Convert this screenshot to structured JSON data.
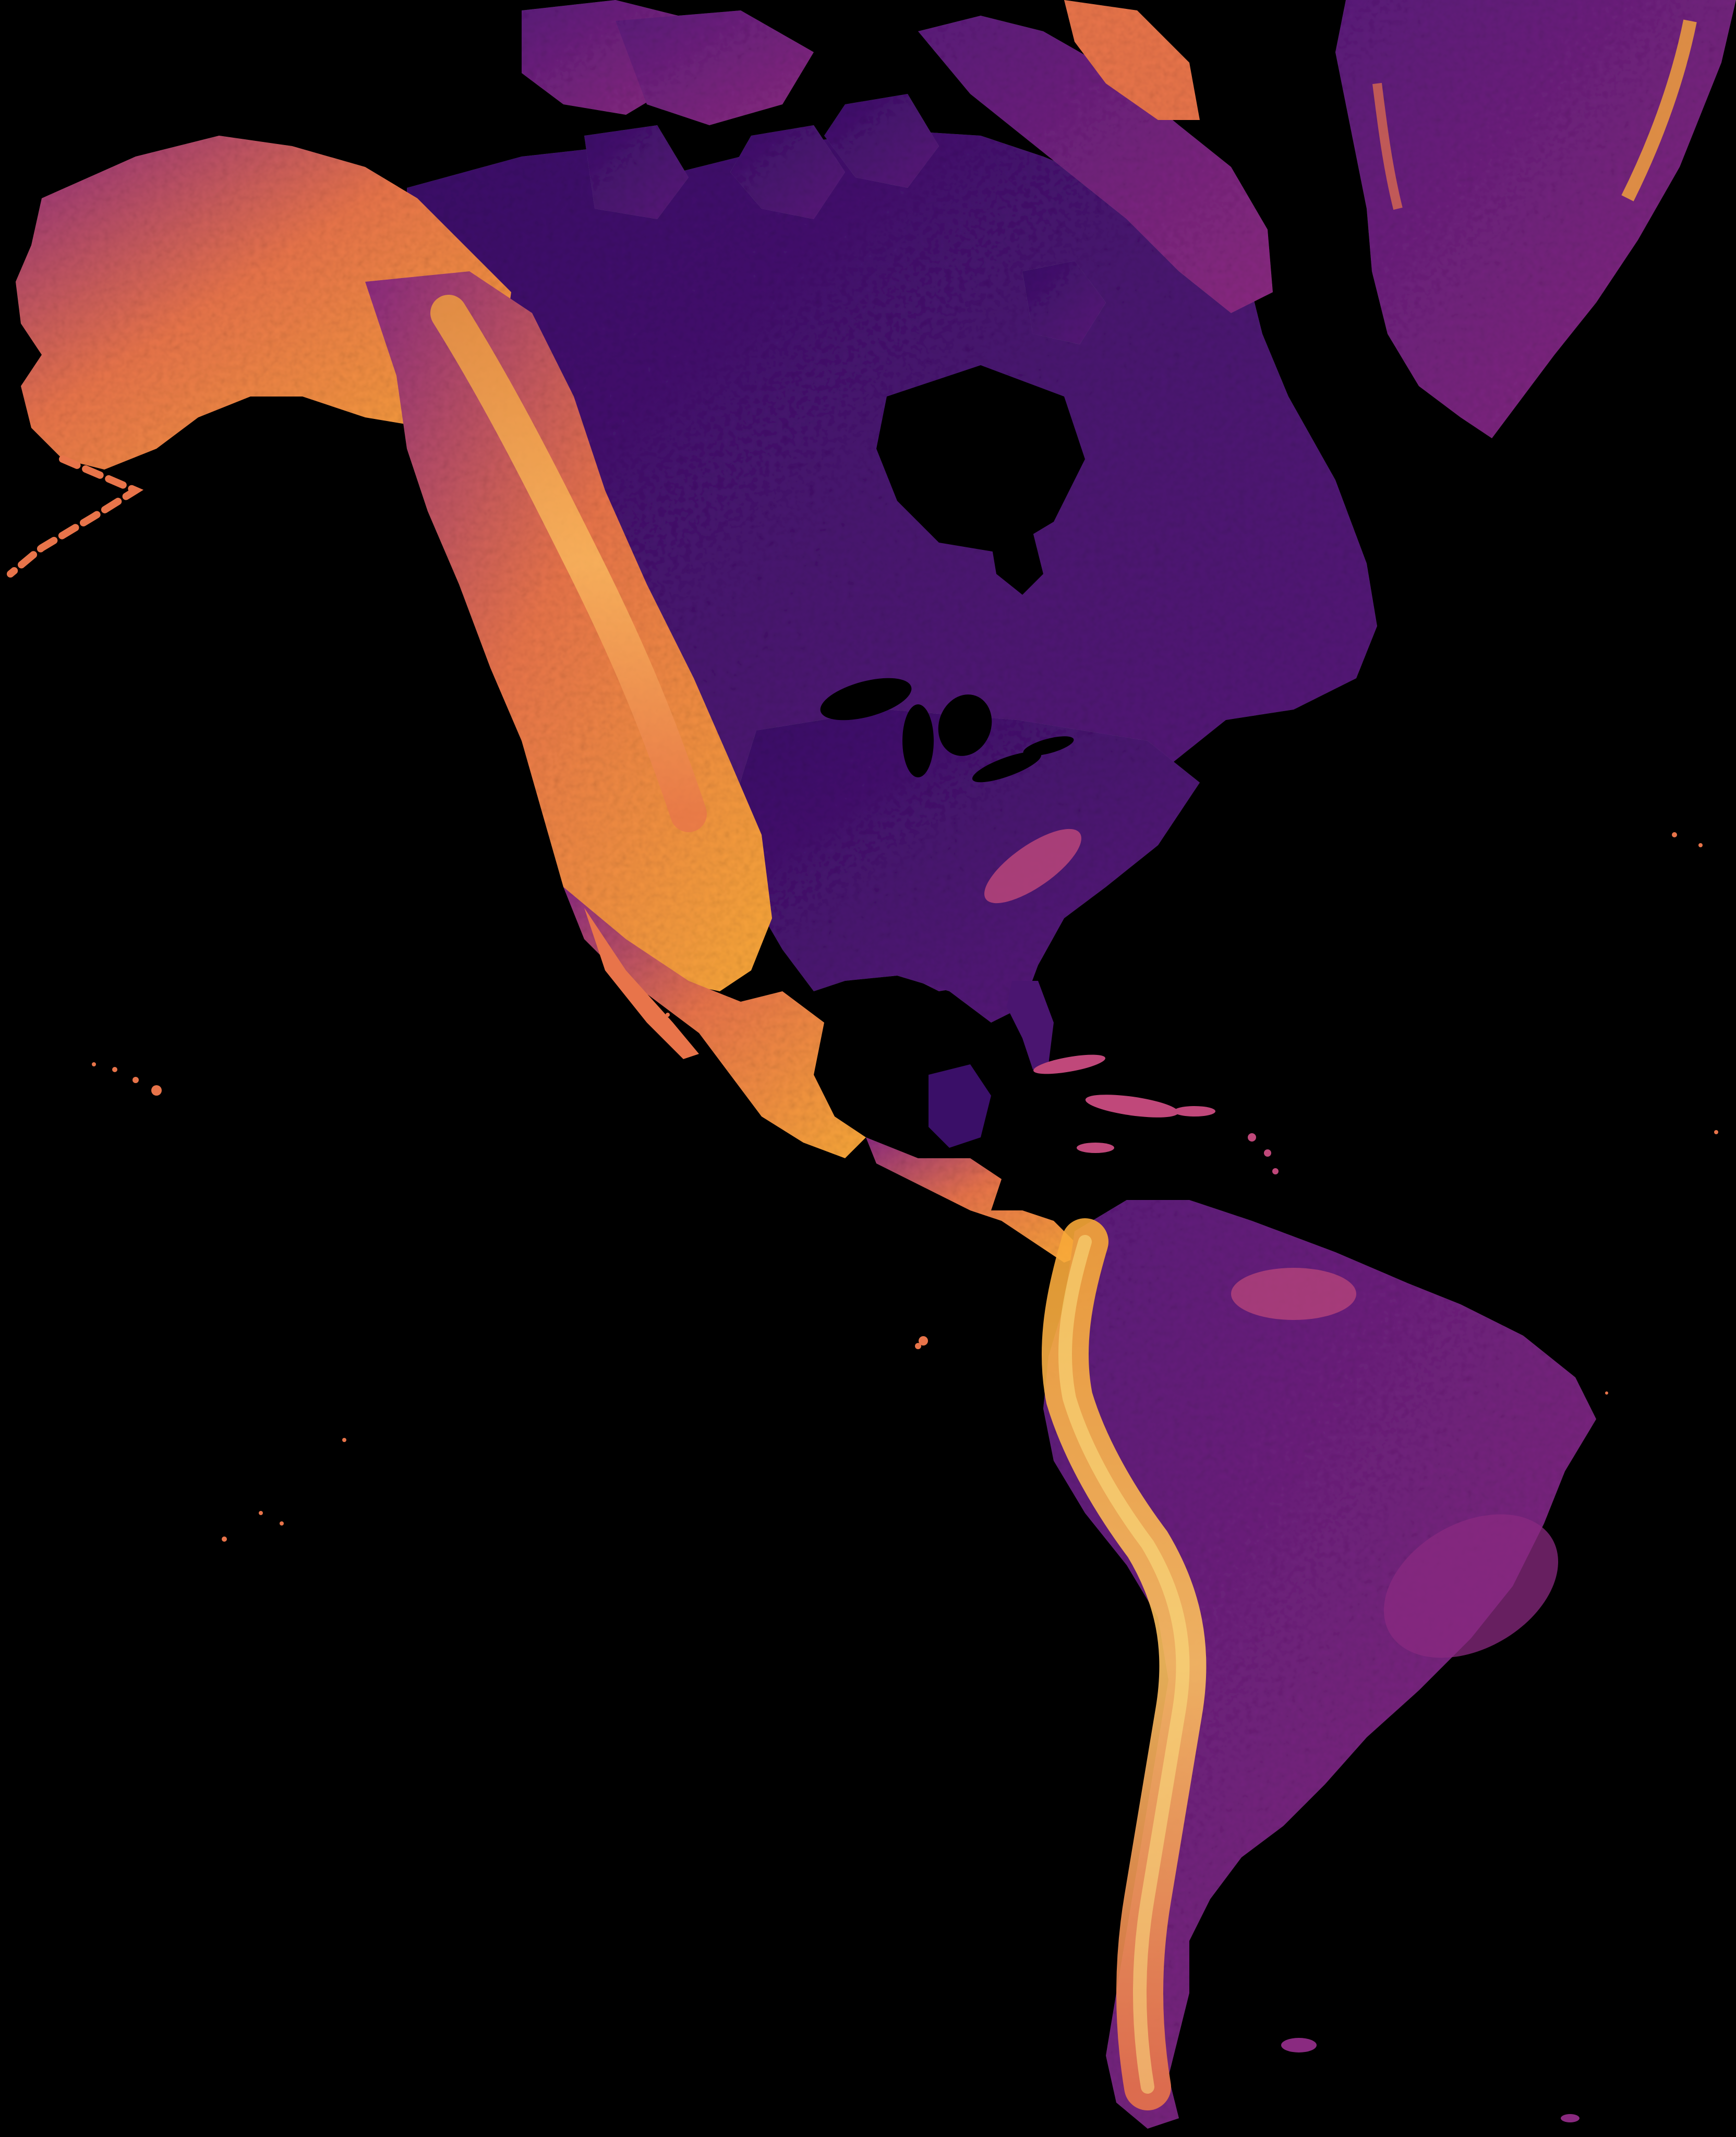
{
  "map": {
    "background_color": "#000000",
    "colormap": [
      "#0d0829",
      "#2c0b5a",
      "#5a1a7a",
      "#8a2a80",
      "#c0487a",
      "#e8744a",
      "#f8a838",
      "#fce080"
    ],
    "regions": [
      {
        "name": "alaska",
        "intensity": "high"
      },
      {
        "name": "canadian-arctic-archipelago",
        "intensity": "low"
      },
      {
        "name": "greenland",
        "intensity": "medium"
      },
      {
        "name": "canada",
        "intensity": "low"
      },
      {
        "name": "western-cordillera",
        "intensity": "high"
      },
      {
        "name": "eastern-united-states",
        "intensity": "low"
      },
      {
        "name": "mexico",
        "intensity": "high"
      },
      {
        "name": "central-america",
        "intensity": "high"
      },
      {
        "name": "andes",
        "intensity": "high"
      },
      {
        "name": "south-america-interior",
        "intensity": "low"
      },
      {
        "name": "hudson-bay",
        "intensity": "water"
      },
      {
        "name": "gulf-of-mexico",
        "intensity": "water"
      }
    ]
  }
}
